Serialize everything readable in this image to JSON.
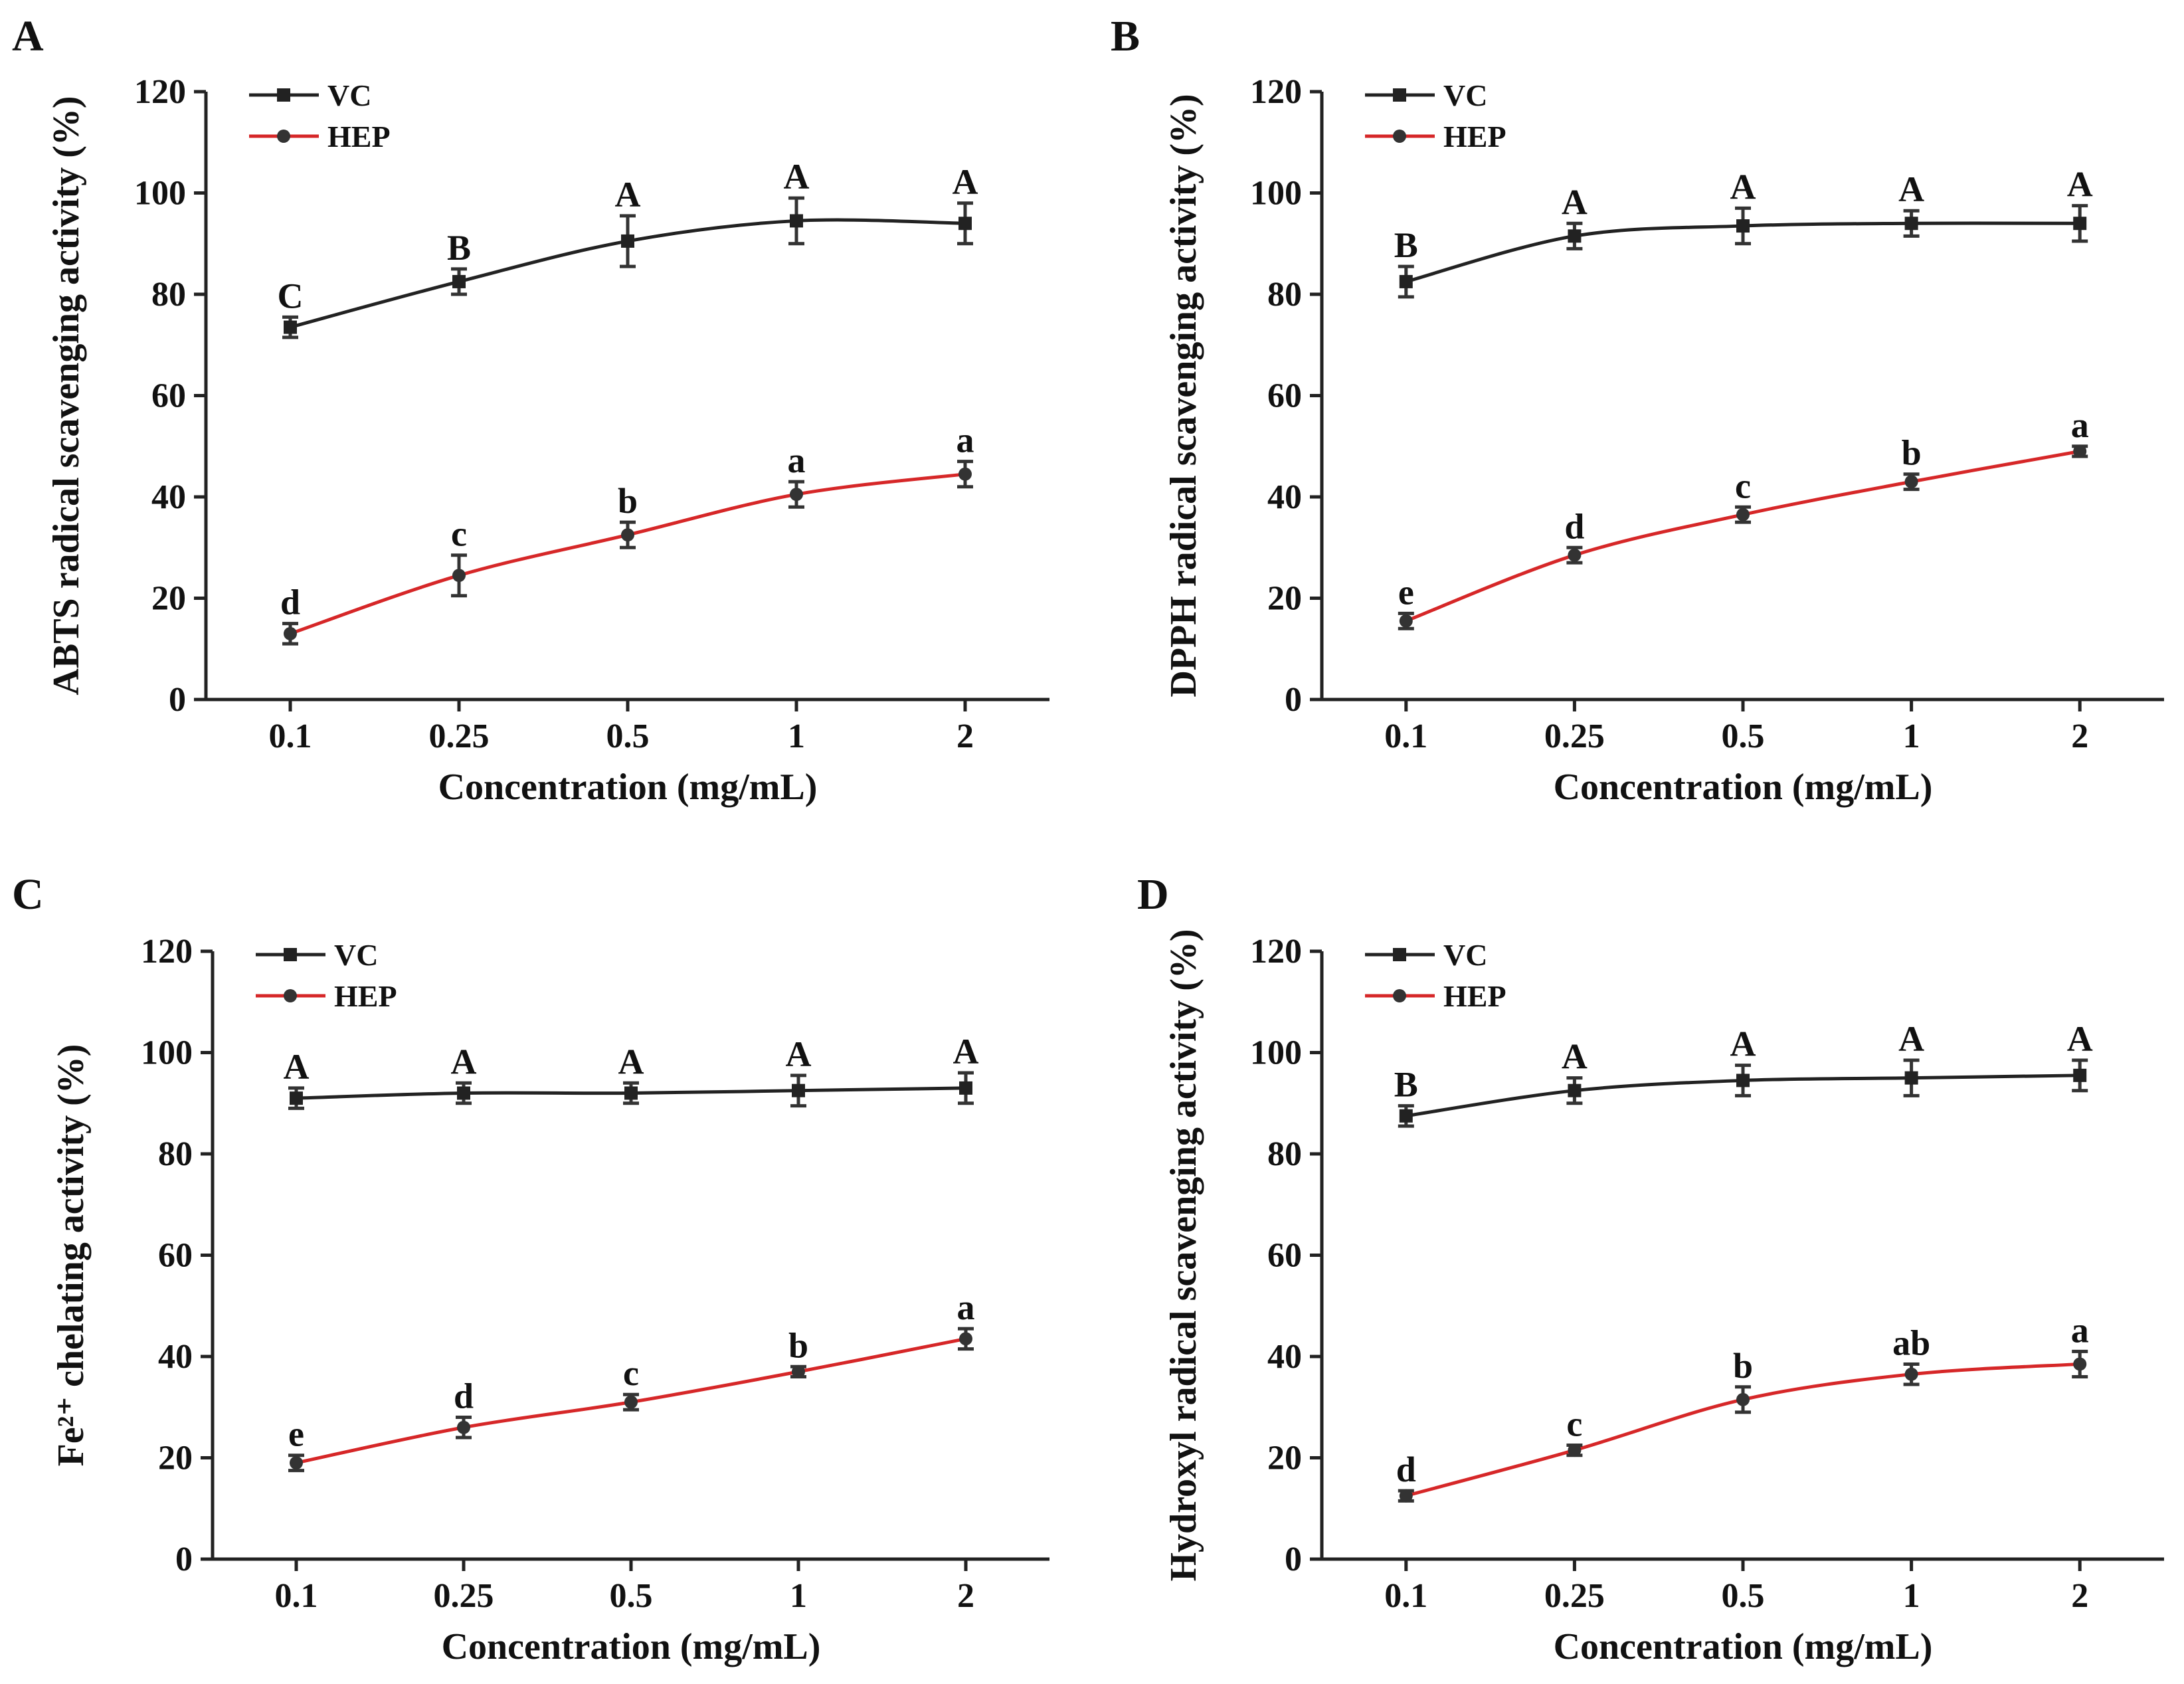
{
  "chart_data": [
    {
      "panel": "A",
      "type": "line",
      "ylabel": "ABTS radical scavenging activity (%)",
      "xlabel": "Concentration (mg/mL)",
      "categories": [
        "0.1",
        "0.25",
        "0.5",
        "1",
        "2"
      ],
      "ylim": [
        0,
        120
      ],
      "yticks": [
        "0",
        "20",
        "40",
        "60",
        "80",
        "100",
        "120"
      ],
      "legend_position": "top-left",
      "series": [
        {
          "name": "VC",
          "color": "#222222",
          "marker": "square",
          "values": [
            73.5,
            82.5,
            90.5,
            94.5,
            94
          ],
          "errors": [
            2,
            2.5,
            5,
            4.5,
            4
          ],
          "labels": [
            "C",
            "B",
            "A",
            "A",
            "A"
          ]
        },
        {
          "name": "HEP",
          "color": "#d62728",
          "marker": "circle",
          "values": [
            13,
            24.5,
            32.5,
            40.5,
            44.5
          ],
          "errors": [
            2,
            4,
            2.5,
            2.5,
            2.5
          ],
          "labels": [
            "d",
            "c",
            "b",
            "a",
            "a"
          ]
        }
      ]
    },
    {
      "panel": "B",
      "type": "line",
      "ylabel": "DPPH radical scavenging activity (%)",
      "xlabel": "Concentration (mg/mL)",
      "categories": [
        "0.1",
        "0.25",
        "0.5",
        "1",
        "2"
      ],
      "ylim": [
        0,
        120
      ],
      "yticks": [
        "0",
        "20",
        "40",
        "60",
        "80",
        "100",
        "120"
      ],
      "legend_position": "top-left",
      "series": [
        {
          "name": "VC",
          "color": "#222222",
          "marker": "square",
          "values": [
            82.5,
            91.5,
            93.5,
            94,
            94
          ],
          "errors": [
            3,
            2.5,
            3.5,
            2.5,
            3.5
          ],
          "labels": [
            "B",
            "A",
            "A",
            "A",
            "A"
          ]
        },
        {
          "name": "HEP",
          "color": "#d62728",
          "marker": "circle",
          "values": [
            15.5,
            28.5,
            36.5,
            43,
            49
          ],
          "errors": [
            1.5,
            1.5,
            1.5,
            1.5,
            1
          ],
          "labels": [
            "e",
            "d",
            "c",
            "b",
            "a"
          ]
        }
      ]
    },
    {
      "panel": "C",
      "type": "line",
      "ylabel": "Fe²⁺ chelating activity (%)",
      "xlabel": "Concentration (mg/mL)",
      "categories": [
        "0.1",
        "0.25",
        "0.5",
        "1",
        "2"
      ],
      "ylim": [
        0,
        120
      ],
      "yticks": [
        "0",
        "20",
        "40",
        "60",
        "80",
        "100",
        "120"
      ],
      "legend_position": "top-left",
      "series": [
        {
          "name": "VC",
          "color": "#222222",
          "marker": "square",
          "values": [
            91,
            92,
            92,
            92.5,
            93
          ],
          "errors": [
            2,
            2,
            2,
            3,
            3
          ],
          "labels": [
            "A",
            "A",
            "A",
            "A",
            "A"
          ]
        },
        {
          "name": "HEP",
          "color": "#d62728",
          "marker": "circle",
          "values": [
            19,
            26,
            31,
            37,
            43.5
          ],
          "errors": [
            1.5,
            2,
            1.5,
            1,
            2
          ],
          "labels": [
            "e",
            "d",
            "c",
            "b",
            "a"
          ]
        }
      ]
    },
    {
      "panel": "D",
      "type": "line",
      "ylabel": "Hydroxyl radical scavenging activity (%)",
      "xlabel": "Concentration (mg/mL)",
      "categories": [
        "0.1",
        "0.25",
        "0.5",
        "1",
        "2"
      ],
      "ylim": [
        0,
        120
      ],
      "yticks": [
        "0",
        "20",
        "40",
        "60",
        "80",
        "100",
        "120"
      ],
      "legend_position": "top-left",
      "series": [
        {
          "name": "VC",
          "color": "#222222",
          "marker": "square",
          "values": [
            87.5,
            92.5,
            94.5,
            95,
            95.5
          ],
          "errors": [
            2,
            2.5,
            3,
            3.5,
            3
          ],
          "labels": [
            "B",
            "A",
            "A",
            "A",
            "A"
          ]
        },
        {
          "name": "HEP",
          "color": "#d62728",
          "marker": "circle",
          "values": [
            12.5,
            21.5,
            31.5,
            36.5,
            38.5
          ],
          "errors": [
            1,
            1,
            2.5,
            2,
            2.5
          ],
          "labels": [
            "d",
            "c",
            "b",
            "ab",
            "a"
          ]
        }
      ]
    }
  ]
}
